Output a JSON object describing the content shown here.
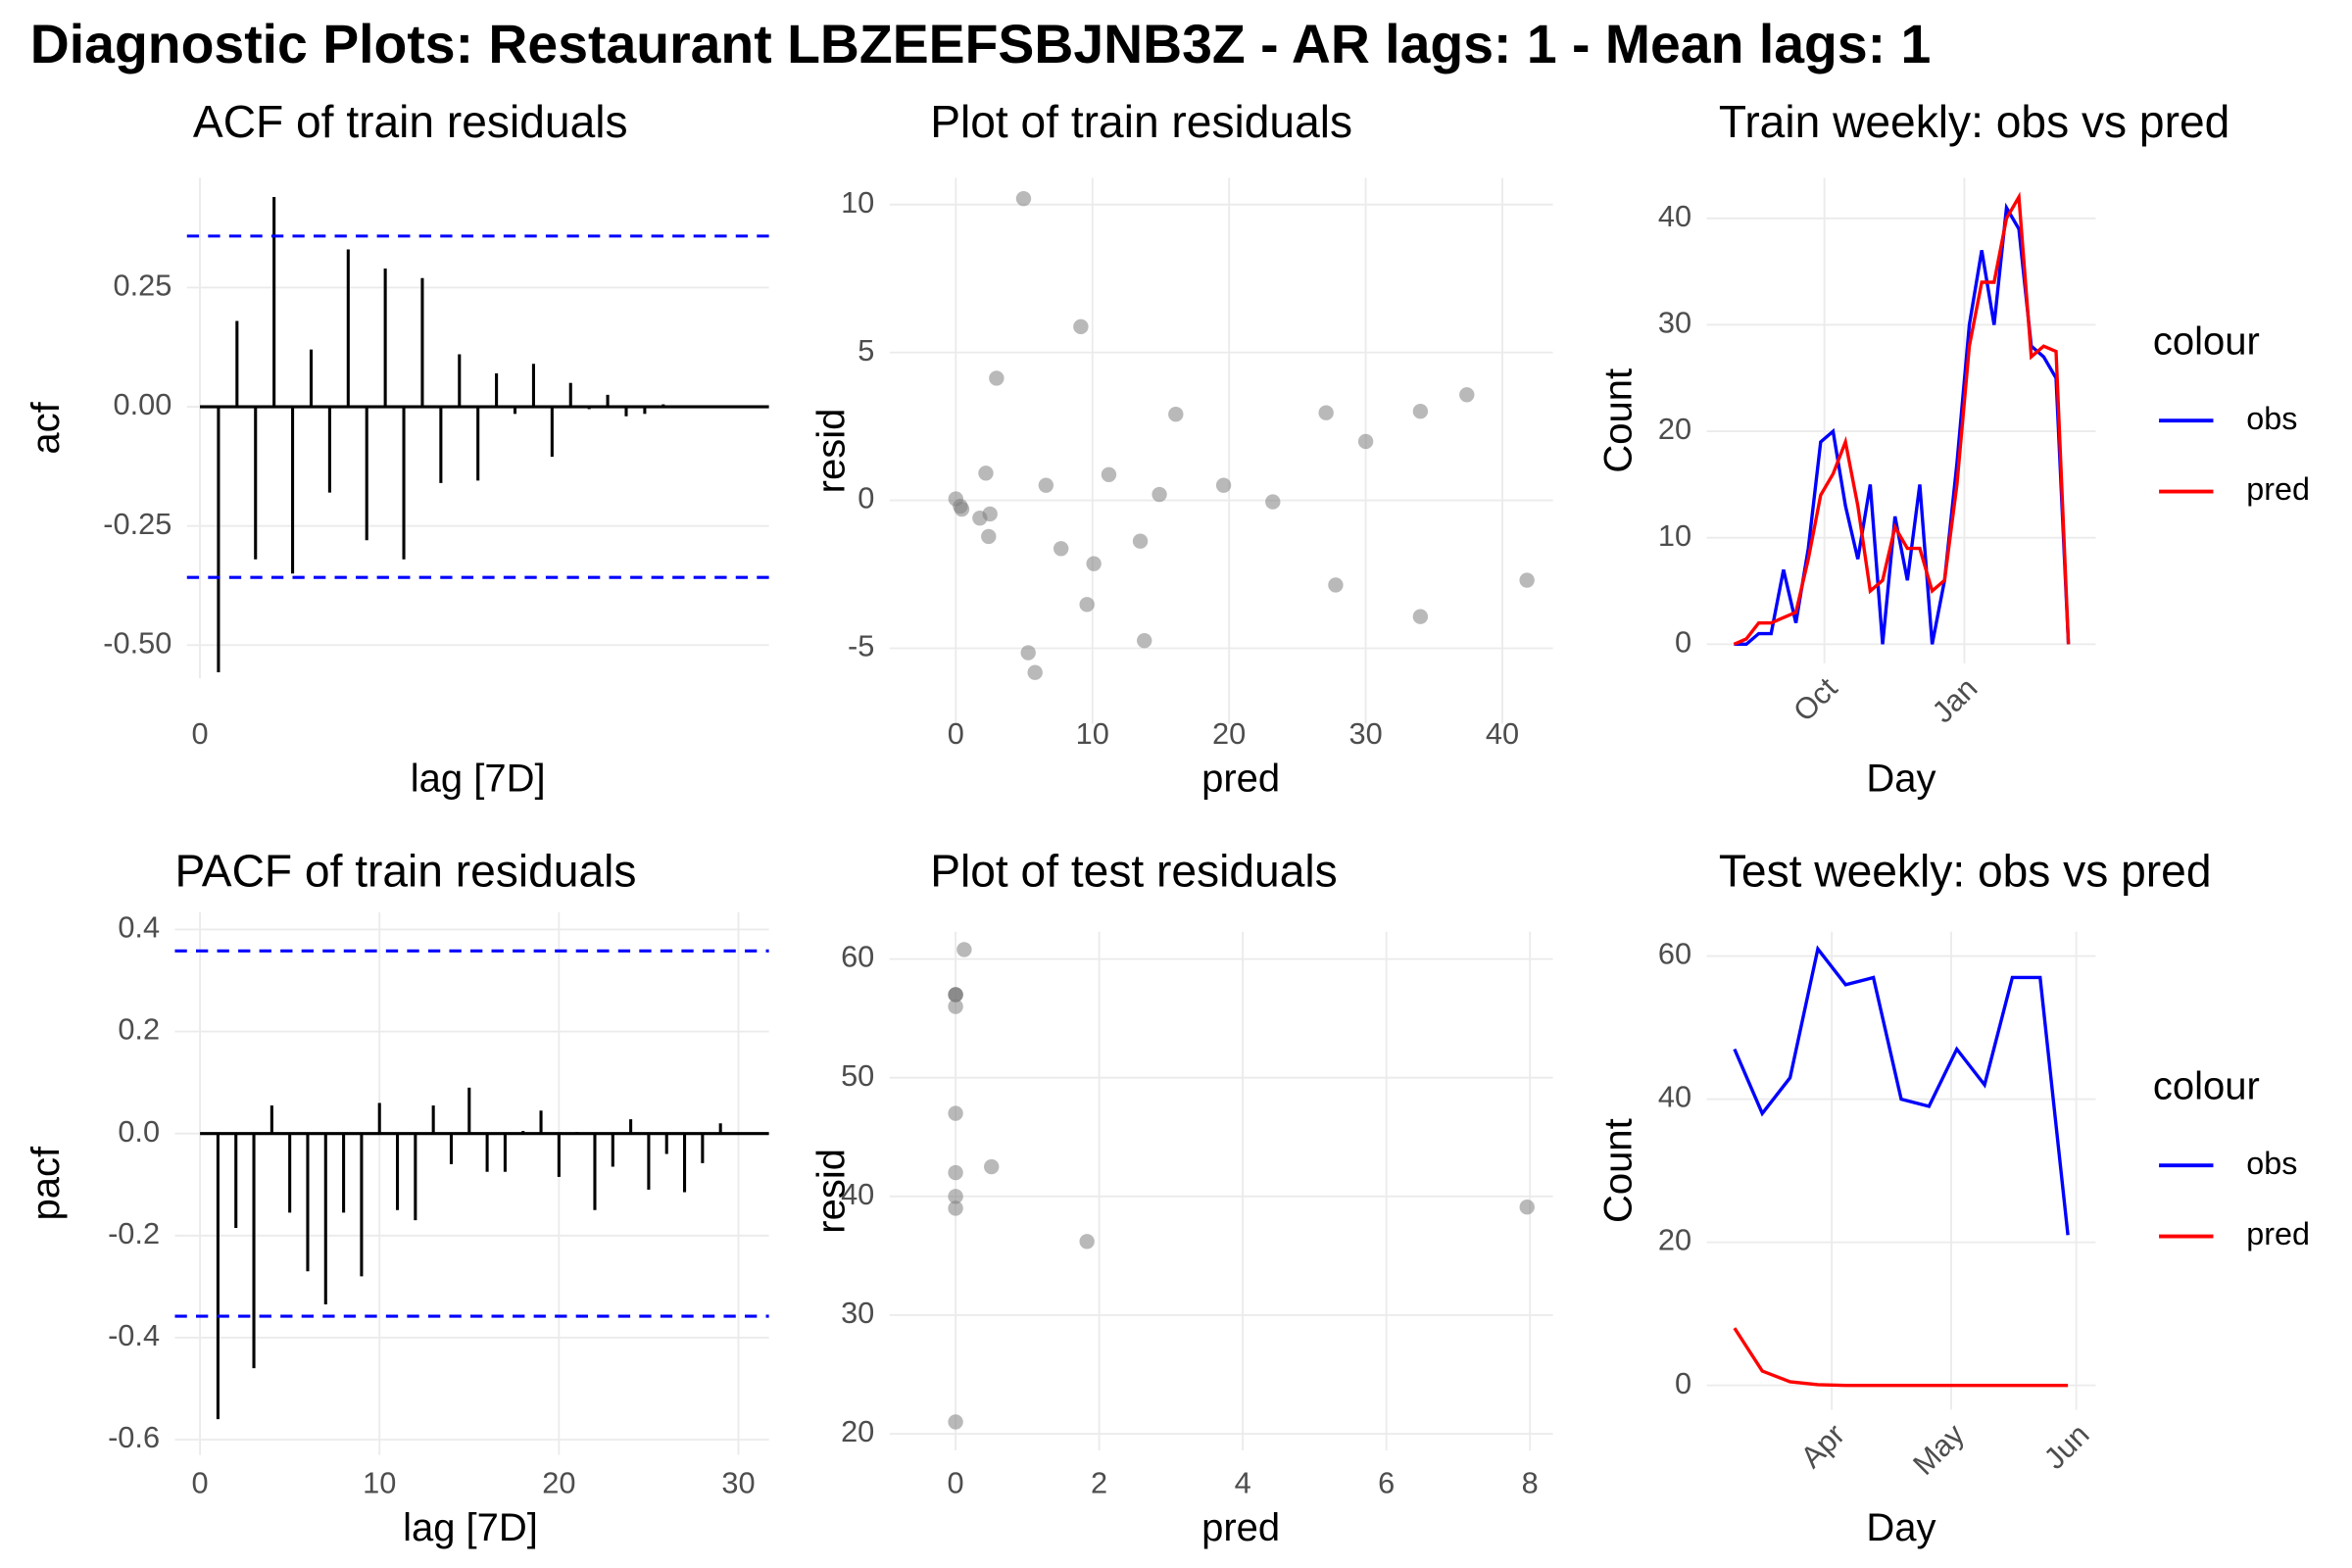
{
  "title": "Diagnostic Plots: Restaurant LBZEEFSBJNB3Z - AR lags: 1 - Mean lags: 1",
  "chart_data": [
    {
      "type": "stem",
      "title": "ACF of train residuals",
      "x_label": "lag [7D]",
      "y_label": "acf",
      "x": [
        1,
        2,
        3,
        4,
        5,
        6,
        7,
        8,
        9,
        10,
        11,
        12,
        13,
        14,
        15,
        16,
        17,
        18,
        19,
        20,
        21,
        22,
        23,
        24,
        25
      ],
      "values": [
        -0.557,
        0.18,
        -0.32,
        0.44,
        -0.35,
        0.12,
        -0.18,
        0.33,
        -0.28,
        0.29,
        -0.32,
        0.27,
        -0.16,
        0.11,
        -0.155,
        0.07,
        -0.015,
        0.09,
        -0.105,
        0.05,
        -0.005,
        0.025,
        -0.02,
        -0.015,
        0.005
      ],
      "color": "#000000",
      "reference_lines": [
        0.358,
        -0.358
      ],
      "reference_color": "#0000ff",
      "xlim": [
        -0.7,
        30.7
      ],
      "ylim": [
        -0.57,
        0.48
      ],
      "xticks": [
        0
      ],
      "yticks": [
        0.25,
        {
          "value": 0,
          "label": "0.00"
        },
        -0.25,
        {
          "value": -0.5,
          "label": "-0.50"
        }
      ],
      "grid": true
    },
    {
      "type": "scatter",
      "title": "Plot of train residuals",
      "x_label": "pred",
      "y_label": "resid",
      "x": [
        4.96,
        9.15,
        2.98,
        16.1,
        27.1,
        34.0,
        37.4,
        30.0,
        2.2,
        11.2,
        6.6,
        19.6,
        14.9,
        23.2,
        0,
        0.33,
        0.44,
        1.76,
        2.5,
        2.4,
        7.7,
        13.5,
        10.1,
        27.8,
        41.8,
        9.6,
        34.0,
        13.8,
        5.3,
        5.8
      ],
      "values": [
        10.2,
        5.87,
        4.13,
        2.91,
        2.96,
        3.01,
        3.57,
        1.99,
        0.92,
        0.87,
        0.51,
        0.51,
        0.2,
        -0.05,
        0.05,
        -0.2,
        -0.3,
        -0.6,
        -0.46,
        -1.22,
        -1.63,
        -1.38,
        -2.14,
        -2.86,
        -2.7,
        -3.52,
        -3.93,
        -4.74,
        -5.15,
        -5.82
      ],
      "color": "#808080",
      "xlim": [
        -4.85,
        43.7
      ],
      "ylim": [
        -7.55,
        10.9
      ],
      "xticks": [
        0,
        10,
        20,
        30,
        40
      ],
      "yticks": [
        10,
        5,
        0,
        -5
      ],
      "grid": true
    },
    {
      "type": "line",
      "title": "Train weekly: obs vs pred",
      "x_label": "Day",
      "y_label": "Count",
      "legend_title": "colour",
      "x": [
        0,
        1,
        2,
        3,
        4,
        5,
        6,
        7,
        8,
        9,
        10,
        11,
        12,
        13,
        14,
        15,
        16,
        17,
        18,
        19,
        20,
        21,
        22,
        23,
        24,
        25,
        26,
        27
      ],
      "series": [
        {
          "name": "obs",
          "color": "#0000ff",
          "values": [
            0,
            0,
            1,
            1,
            7,
            2,
            9,
            19,
            20,
            13,
            8,
            15,
            0,
            12,
            6,
            15,
            0,
            6,
            17,
            30,
            37,
            30,
            41,
            39,
            28,
            27,
            25,
            0
          ]
        },
        {
          "name": "pred",
          "color": "#ff0000",
          "values": [
            0,
            0.5,
            2,
            2,
            2.5,
            3,
            8,
            14,
            16,
            19,
            13,
            5,
            6,
            11,
            9,
            9,
            5,
            6,
            15,
            28,
            34,
            34,
            40,
            42,
            27,
            28,
            27.5,
            0
          ]
        }
      ],
      "xlim": [
        -2.2,
        29.2
      ],
      "ylim": [
        -1.8,
        43.8
      ],
      "xticks": [
        {
          "value": 7.3,
          "label": "Oct"
        },
        {
          "value": 18.6,
          "label": "Jan"
        }
      ],
      "yticks": [
        0,
        10,
        20,
        30,
        40
      ],
      "grid": true
    },
    {
      "type": "stem",
      "title": "PACF of train residuals",
      "x_label": "lag [7D]",
      "y_label": "pacf",
      "x": [
        1,
        2,
        3,
        4,
        5,
        6,
        7,
        8,
        9,
        10,
        11,
        12,
        13,
        14,
        15,
        16,
        17,
        18,
        19,
        20,
        21,
        22,
        23,
        24,
        25,
        26,
        27,
        28,
        29
      ],
      "values": [
        -0.56,
        -0.185,
        -0.46,
        0.055,
        -0.155,
        -0.27,
        -0.335,
        -0.155,
        -0.28,
        0.06,
        -0.15,
        -0.17,
        0.055,
        -0.06,
        0.09,
        -0.075,
        -0.075,
        0.005,
        0.045,
        -0.085,
        0.003,
        -0.15,
        -0.065,
        0.028,
        -0.11,
        -0.04,
        -0.115,
        -0.058,
        0.02
      ],
      "color": "#000000",
      "reference_lines": [
        0.358,
        -0.358
      ],
      "reference_color": "#0000ff",
      "xlim": [
        -1.4,
        31.7
      ],
      "ylim": [
        -0.63,
        0.434
      ],
      "xticks": [
        0,
        10,
        20,
        30
      ],
      "yticks": [
        0.4,
        0.2,
        {
          "value": 0,
          "label": "0.0"
        },
        -0.2,
        -0.4,
        -0.6
      ],
      "grid": true
    },
    {
      "type": "scatter",
      "title": "Plot of test residuals",
      "x_label": "pred",
      "y_label": "resid",
      "x": [
        7.96,
        1.83,
        0.5,
        0.12,
        0,
        0,
        0,
        0,
        0,
        0,
        0,
        0,
        0
      ],
      "values": [
        39.1,
        36.2,
        42.5,
        60.8,
        56,
        57,
        40,
        39,
        47,
        42,
        57,
        57,
        21
      ],
      "color": "#808080",
      "xlim": [
        -0.92,
        8.32
      ],
      "ylim": [
        18.6,
        62.3
      ],
      "xticks": [
        0,
        2,
        4,
        6,
        8
      ],
      "yticks": [
        60,
        50,
        40,
        30,
        20
      ],
      "grid": true
    },
    {
      "type": "line",
      "title": "Test weekly: obs vs pred",
      "x_label": "Day",
      "y_label": "Count",
      "legend_title": "colour",
      "x": [
        0,
        1,
        2,
        3,
        4,
        5,
        6,
        7,
        8,
        9,
        10,
        11,
        12
      ],
      "series": [
        {
          "name": "obs",
          "color": "#0000ff",
          "values": [
            47,
            38,
            43,
            61,
            56,
            57,
            40,
            39,
            47,
            42,
            57,
            57,
            21
          ]
        },
        {
          "name": "pred",
          "color": "#ff0000",
          "values": [
            8,
            2,
            0.5,
            0.1,
            0,
            0,
            0,
            0,
            0,
            0,
            0,
            0,
            0
          ]
        }
      ],
      "xlim": [
        -1,
        13
      ],
      "ylim": [
        -3.4,
        63.4
      ],
      "xticks": [
        {
          "value": 3.5,
          "label": "Apr"
        },
        {
          "value": 7.8,
          "label": "May"
        },
        {
          "value": 12.3,
          "label": "Jun"
        }
      ],
      "yticks": [
        0,
        20,
        40,
        60
      ],
      "grid": true
    }
  ]
}
